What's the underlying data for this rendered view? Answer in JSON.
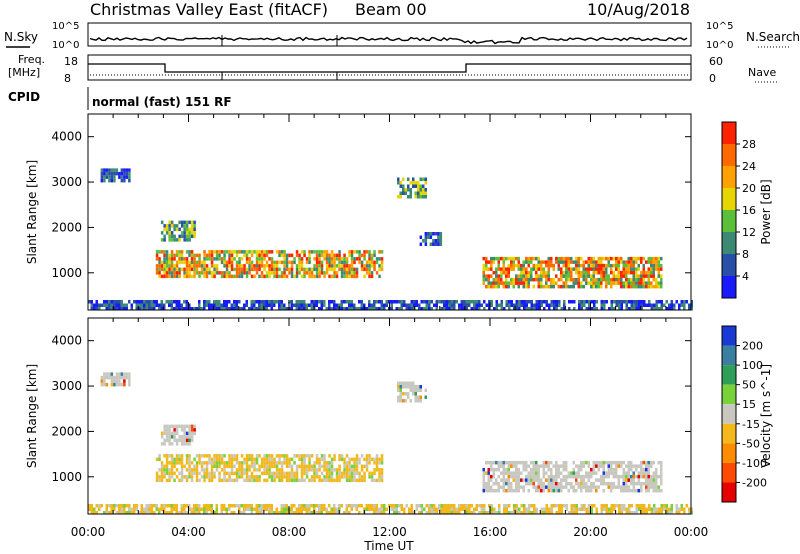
{
  "header": {
    "station": "Christmas Valley East (fitACF)",
    "beam": "Beam 00",
    "date": "10/Aug/2018"
  },
  "nsky_panel": {
    "left_label": "N.Sky",
    "right_label": "N.Search",
    "left_ticks": [
      "10^5",
      "10^0"
    ],
    "right_ticks": [
      "10^5",
      "10^0"
    ]
  },
  "freq_panel": {
    "left_label_line1": "Freq.",
    "left_label_line2": "[MHz]",
    "right_label": "Nave",
    "left_ticks": [
      "18",
      "8"
    ],
    "right_ticks": [
      "60",
      "0"
    ]
  },
  "cpid_panel": {
    "label": "CPID",
    "text": "normal (fast) 151 RF"
  },
  "x_axis": {
    "label": "Time UT",
    "ticks": [
      "00:00",
      "04:00",
      "08:00",
      "12:00",
      "16:00",
      "20:00",
      "00:00"
    ]
  },
  "chart_data": [
    {
      "type": "heatmap",
      "quantity": "Power",
      "ylabel": "Slant Range [km]",
      "xlabel": "Time UT",
      "xlim": [
        0,
        24
      ],
      "ylim": [
        180,
        4500
      ],
      "yticks": [
        1000,
        2000,
        3000,
        4000
      ],
      "colorbar": {
        "title": "Power [dB]",
        "ticks": [
          "4",
          "8",
          "12",
          "16",
          "20",
          "24",
          "28"
        ],
        "colors": [
          "#1a1aff",
          "#2a4fa8",
          "#3d8a74",
          "#5bbf3a",
          "#e6d500",
          "#ffa100",
          "#ff6a00",
          "#ff2200"
        ]
      },
      "regions": [
        {
          "t0": 2.7,
          "t1": 11.7,
          "r0": 950,
          "r1": 1500,
          "level": "high"
        },
        {
          "t0": 2.9,
          "t1": 4.2,
          "r0": 1750,
          "r1": 2150,
          "level": "medium"
        },
        {
          "t0": 0.5,
          "t1": 1.6,
          "r0": 3050,
          "r1": 3300,
          "level": "low"
        },
        {
          "t0": 12.3,
          "t1": 13.4,
          "r0": 2700,
          "r1": 3100,
          "level": "medium"
        },
        {
          "t0": 13.2,
          "t1": 14.0,
          "r0": 1650,
          "r1": 1900,
          "level": "low"
        },
        {
          "t0": 15.7,
          "t1": 22.8,
          "r0": 700,
          "r1": 1350,
          "level": "high"
        },
        {
          "t0": 0.0,
          "t1": 24.0,
          "r0": 200,
          "r1": 400,
          "level": "low"
        }
      ]
    },
    {
      "type": "heatmap",
      "quantity": "Velocity",
      "ylabel": "Slant Range [km]",
      "xlabel": "Time UT",
      "xlim": [
        0,
        24
      ],
      "ylim": [
        180,
        4500
      ],
      "yticks": [
        1000,
        2000,
        3000,
        4000
      ],
      "colorbar": {
        "title": "Velocity [m s^-1]",
        "ticks": [
          "200",
          "100",
          "50",
          "15",
          "-15",
          "-50",
          "-100",
          "-200"
        ],
        "colors": [
          "#1a3ad6",
          "#3b7fa0",
          "#2f9e58",
          "#7ad23b",
          "#c8c8c0",
          "#f2b81c",
          "#ff8c00",
          "#ff4a00",
          "#e60000"
        ]
      },
      "regions": [
        {
          "t0": 2.7,
          "t1": 11.7,
          "r0": 950,
          "r1": 1500,
          "level": "-50"
        },
        {
          "t0": 2.9,
          "t1": 4.2,
          "r0": 1750,
          "r1": 2150,
          "level": "15"
        },
        {
          "t0": 0.5,
          "t1": 1.6,
          "r0": 3050,
          "r1": 3300,
          "level": "15"
        },
        {
          "t0": 12.3,
          "t1": 13.4,
          "r0": 2700,
          "r1": 3100,
          "level": "15"
        },
        {
          "t0": 15.7,
          "t1": 22.8,
          "r0": 700,
          "r1": 1350,
          "level": "15"
        },
        {
          "t0": 0.0,
          "t1": 24.0,
          "r0": 200,
          "r1": 400,
          "level": "-50"
        }
      ]
    }
  ]
}
